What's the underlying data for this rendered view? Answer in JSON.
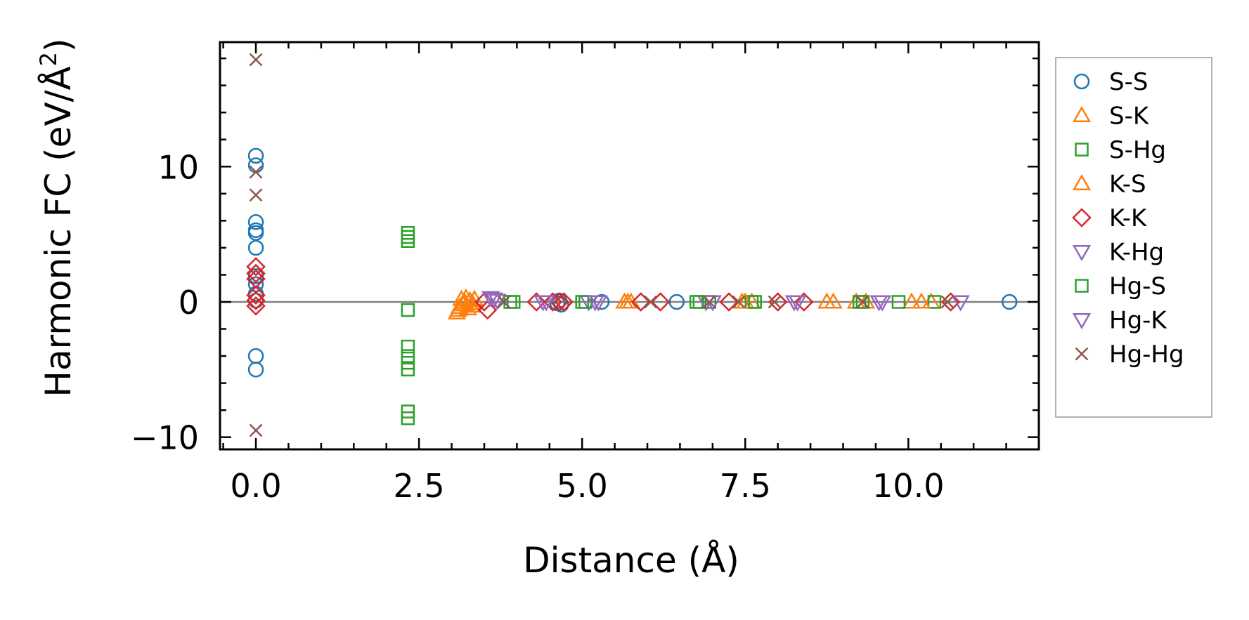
{
  "chart_data": {
    "type": "scatter",
    "xlabel": "Distance (Å)",
    "ylabel_main": "Harmonic FC (eV/Å",
    "ylabel_sup": "2",
    "ylabel_close": ")",
    "xlim": [
      -0.55,
      12.0
    ],
    "ylim": [
      -10.9,
      19.2
    ],
    "xticks": [
      0.0,
      2.5,
      5.0,
      7.5,
      10.0
    ],
    "xtick_labels": [
      "0.0",
      "2.5",
      "5.0",
      "7.5",
      "10.0"
    ],
    "yticks": [
      -10,
      0,
      10
    ],
    "ytick_labels": [
      "−10",
      "0",
      "10"
    ],
    "zero_line": true,
    "legend_position": "right-outside-top",
    "series": [
      {
        "name": "S-S",
        "marker": "circle",
        "color": "#1f77b4",
        "points": [
          [
            0,
            10.8
          ],
          [
            0,
            10.1
          ],
          [
            0,
            5.9
          ],
          [
            0,
            5.3
          ],
          [
            0,
            5.1
          ],
          [
            0,
            4.0
          ],
          [
            0,
            1.9
          ],
          [
            0,
            1.3
          ],
          [
            0,
            0.6
          ],
          [
            0,
            0.1
          ],
          [
            0,
            -4.0
          ],
          [
            0,
            -5.0
          ],
          [
            4.62,
            -0.1
          ],
          [
            4.65,
            0.1
          ],
          [
            4.68,
            -0.2
          ],
          [
            5.3,
            0.0
          ],
          [
            6.45,
            0.0
          ],
          [
            11.55,
            0.0
          ]
        ]
      },
      {
        "name": "S-K",
        "marker": "triangle-up",
        "color": "#ff7f0e",
        "points": [
          [
            3.08,
            -0.8
          ],
          [
            3.12,
            -0.4
          ],
          [
            3.15,
            0.2
          ],
          [
            3.18,
            -0.2
          ],
          [
            3.22,
            0.3
          ],
          [
            3.25,
            -0.5
          ],
          [
            3.28,
            0.1
          ],
          [
            3.32,
            -0.1
          ],
          [
            3.35,
            0.2
          ],
          [
            5.65,
            0.0
          ],
          [
            5.75,
            0.0
          ],
          [
            7.45,
            0.0
          ],
          [
            7.6,
            0.0
          ],
          [
            8.75,
            0.0
          ],
          [
            9.2,
            0.0
          ],
          [
            10.05,
            0.0
          ],
          [
            10.35,
            0.0
          ]
        ]
      },
      {
        "name": "S-Hg",
        "marker": "square",
        "color": "#2ca02c",
        "points": [
          [
            2.33,
            5.1
          ],
          [
            2.33,
            4.8
          ],
          [
            2.33,
            4.5
          ],
          [
            2.33,
            -0.6
          ],
          [
            2.33,
            -3.3
          ],
          [
            2.33,
            -4.0
          ],
          [
            2.33,
            -4.5
          ],
          [
            2.33,
            -5.0
          ],
          [
            2.33,
            -8.1
          ],
          [
            2.33,
            -8.6
          ],
          [
            3.95,
            0.0
          ],
          [
            5.0,
            0.0
          ],
          [
            6.75,
            0.0
          ],
          [
            6.95,
            0.0
          ],
          [
            7.6,
            0.0
          ],
          [
            9.25,
            0.0
          ],
          [
            9.85,
            0.0
          ],
          [
            10.4,
            0.0
          ]
        ]
      },
      {
        "name": "K-S",
        "marker": "triangle-up",
        "color": "#ff7f0e",
        "points": [
          [
            3.1,
            -0.6
          ],
          [
            3.2,
            0.0
          ],
          [
            3.3,
            -0.3
          ],
          [
            5.7,
            0.0
          ],
          [
            7.5,
            0.0
          ],
          [
            8.85,
            0.0
          ],
          [
            9.35,
            0.0
          ],
          [
            10.2,
            0.0
          ]
        ]
      },
      {
        "name": "K-K",
        "marker": "diamond",
        "color": "#d62728",
        "points": [
          [
            0,
            2.6
          ],
          [
            0,
            2.1
          ],
          [
            0,
            1.7
          ],
          [
            0,
            0.5
          ],
          [
            0,
            0.1
          ],
          [
            0,
            -0.3
          ],
          [
            3.5,
            0.0
          ],
          [
            3.55,
            -0.6
          ],
          [
            4.3,
            0.0
          ],
          [
            4.55,
            0.0
          ],
          [
            4.65,
            0.0
          ],
          [
            4.72,
            0.0
          ],
          [
            5.9,
            0.0
          ],
          [
            6.2,
            0.0
          ],
          [
            7.25,
            0.0
          ],
          [
            8.0,
            0.0
          ],
          [
            8.4,
            0.0
          ],
          [
            10.65,
            0.0
          ]
        ]
      },
      {
        "name": "K-Hg",
        "marker": "triangle-down",
        "color": "#9467bd",
        "points": [
          [
            3.6,
            0.3
          ],
          [
            3.7,
            0.1
          ],
          [
            4.4,
            0.0
          ],
          [
            5.1,
            0.0
          ],
          [
            5.25,
            0.0
          ],
          [
            6.9,
            0.0
          ],
          [
            8.3,
            0.0
          ],
          [
            9.6,
            0.0
          ]
        ]
      },
      {
        "name": "Hg-S",
        "marker": "square",
        "color": "#2ca02c",
        "points": [
          [
            3.9,
            0.0
          ],
          [
            5.05,
            0.0
          ],
          [
            6.8,
            0.0
          ],
          [
            7.65,
            0.0
          ],
          [
            9.3,
            0.0
          ]
        ]
      },
      {
        "name": "Hg-K",
        "marker": "triangle-down",
        "color": "#9467bd",
        "points": [
          [
            3.65,
            0.2
          ],
          [
            4.45,
            0.0
          ],
          [
            5.2,
            0.0
          ],
          [
            7.0,
            0.0
          ],
          [
            8.25,
            0.0
          ],
          [
            9.55,
            0.0
          ],
          [
            10.8,
            0.0
          ]
        ]
      },
      {
        "name": "Hg-Hg",
        "marker": "x",
        "color": "#8c564b",
        "points": [
          [
            0,
            17.9
          ],
          [
            0,
            9.6
          ],
          [
            0,
            7.9
          ],
          [
            0,
            -9.5
          ],
          [
            3.8,
            0.0
          ],
          [
            6.05,
            0.0
          ],
          [
            6.95,
            0.0
          ],
          [
            7.4,
            0.0
          ],
          [
            7.95,
            0.0
          ],
          [
            9.3,
            0.0
          ],
          [
            10.6,
            0.0
          ]
        ]
      }
    ]
  }
}
